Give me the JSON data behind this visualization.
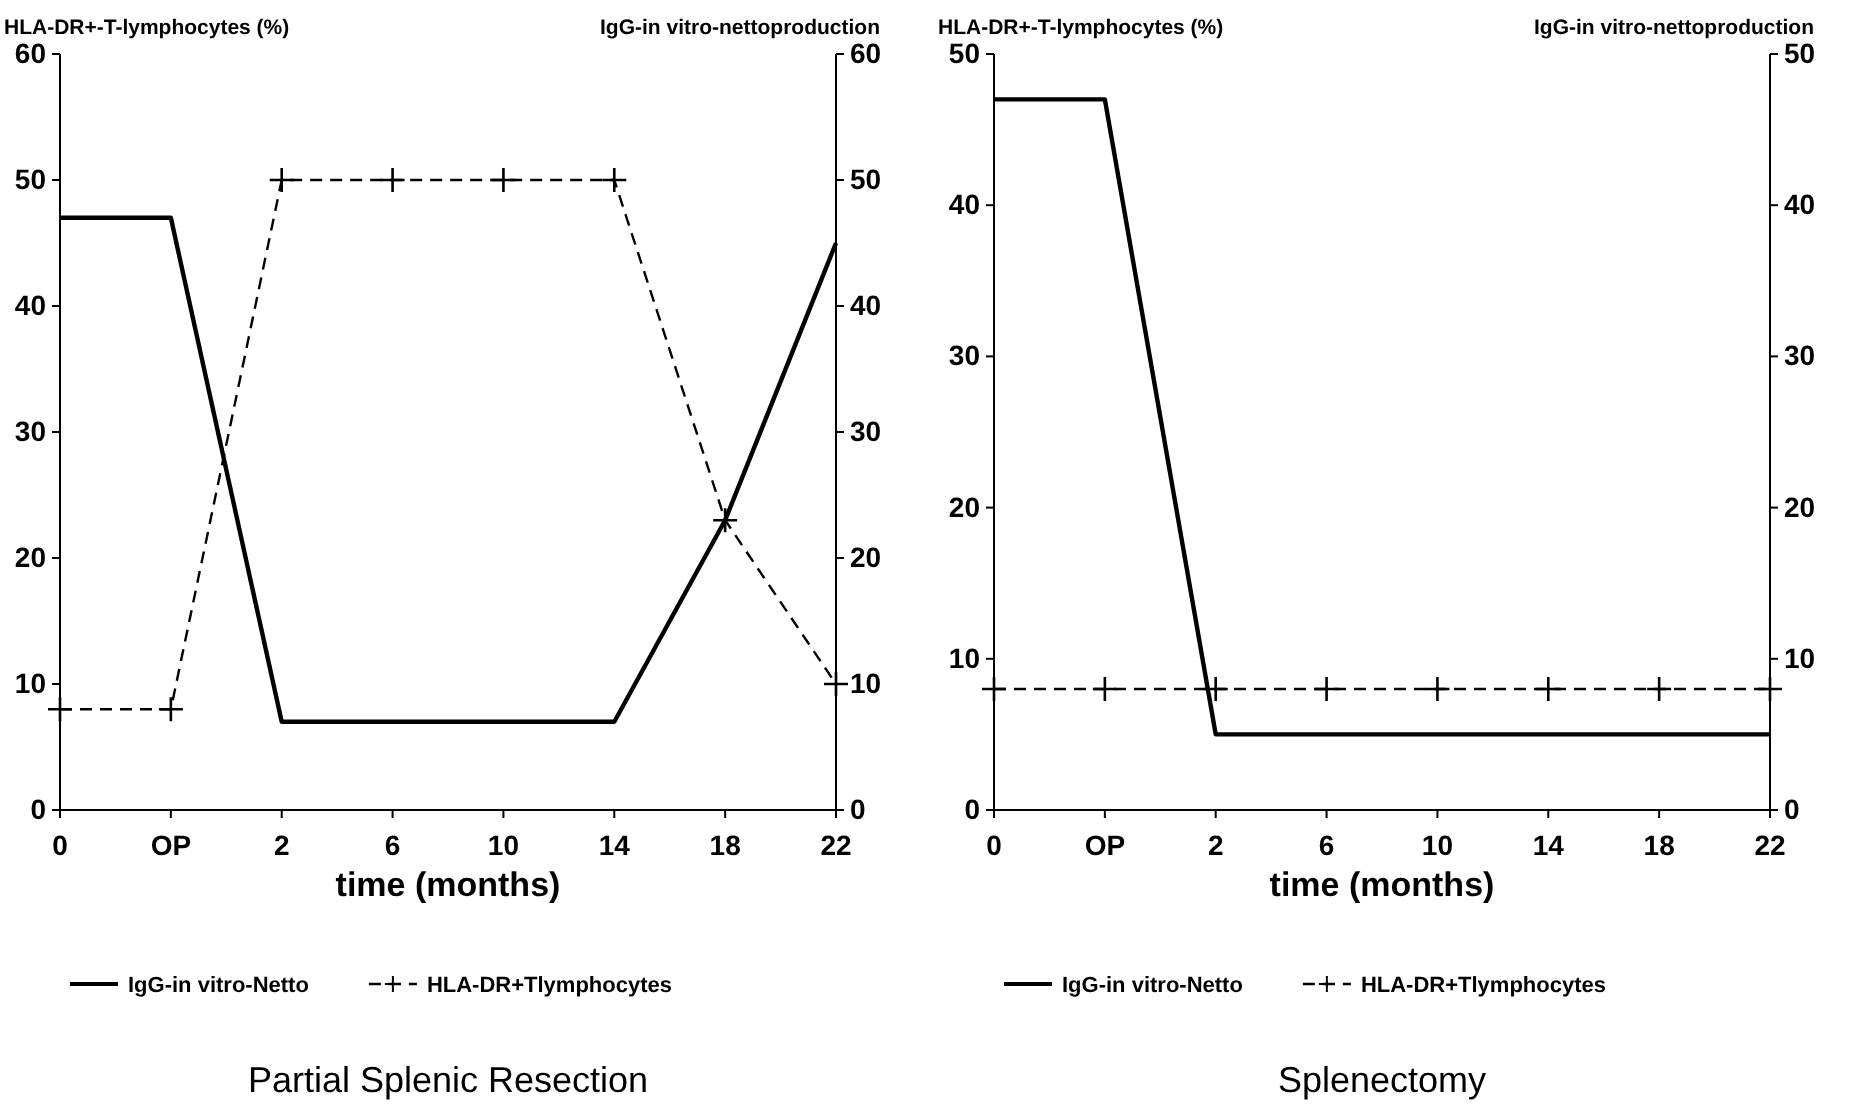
{
  "chart_data": [
    {
      "type": "line",
      "title": "Partial Splenic Resection",
      "xlabel": "time (months)",
      "ylabel": "HLA-DR+-T-lymphocytes (%)",
      "y2label": "IgG-in vitro-nettoproduction",
      "categories": [
        "0",
        "OP",
        "2",
        "6",
        "10",
        "14",
        "18",
        "22"
      ],
      "series": [
        {
          "name": "IgG-in vitro-Netto",
          "color": "#000000",
          "line_style": "solid",
          "marker": "none",
          "values": [
            47,
            47,
            7,
            7,
            7,
            7,
            23,
            45
          ]
        },
        {
          "name": "HLA-DR+Tlymphocytes",
          "color": "#000000",
          "line_style": "dashed",
          "marker": "cross",
          "values": [
            8,
            8,
            50,
            50,
            50,
            50,
            23,
            10
          ]
        }
      ],
      "ylim": [
        0,
        60
      ],
      "yticks": [
        0,
        10,
        20,
        30,
        40,
        50,
        60
      ],
      "y2lim": [
        0,
        60
      ],
      "y2ticks": [
        0,
        10,
        20,
        30,
        40,
        50,
        60
      ],
      "grid": false,
      "legend": "bottom"
    },
    {
      "type": "line",
      "title": "Splenectomy",
      "xlabel": "time (months)",
      "ylabel": "HLA-DR+-T-lymphocytes (%)",
      "y2label": "IgG-in vitro-nettoproduction",
      "categories": [
        "0",
        "OP",
        "2",
        "6",
        "10",
        "14",
        "18",
        "22"
      ],
      "series": [
        {
          "name": "IgG-in vitro-Netto",
          "color": "#000000",
          "line_style": "solid",
          "marker": "none",
          "values": [
            47,
            47,
            5,
            5,
            5,
            5,
            5,
            5
          ]
        },
        {
          "name": "HLA-DR+Tlymphocytes",
          "color": "#000000",
          "line_style": "dashed",
          "marker": "cross",
          "values": [
            8,
            8,
            8,
            8,
            8,
            8,
            8,
            8
          ]
        }
      ],
      "ylim": [
        0,
        50
      ],
      "yticks": [
        0,
        10,
        20,
        30,
        40,
        50
      ],
      "y2lim": [
        0,
        50
      ],
      "y2ticks": [
        0,
        10,
        20,
        30,
        40,
        50
      ],
      "grid": false,
      "legend": "bottom"
    }
  ]
}
